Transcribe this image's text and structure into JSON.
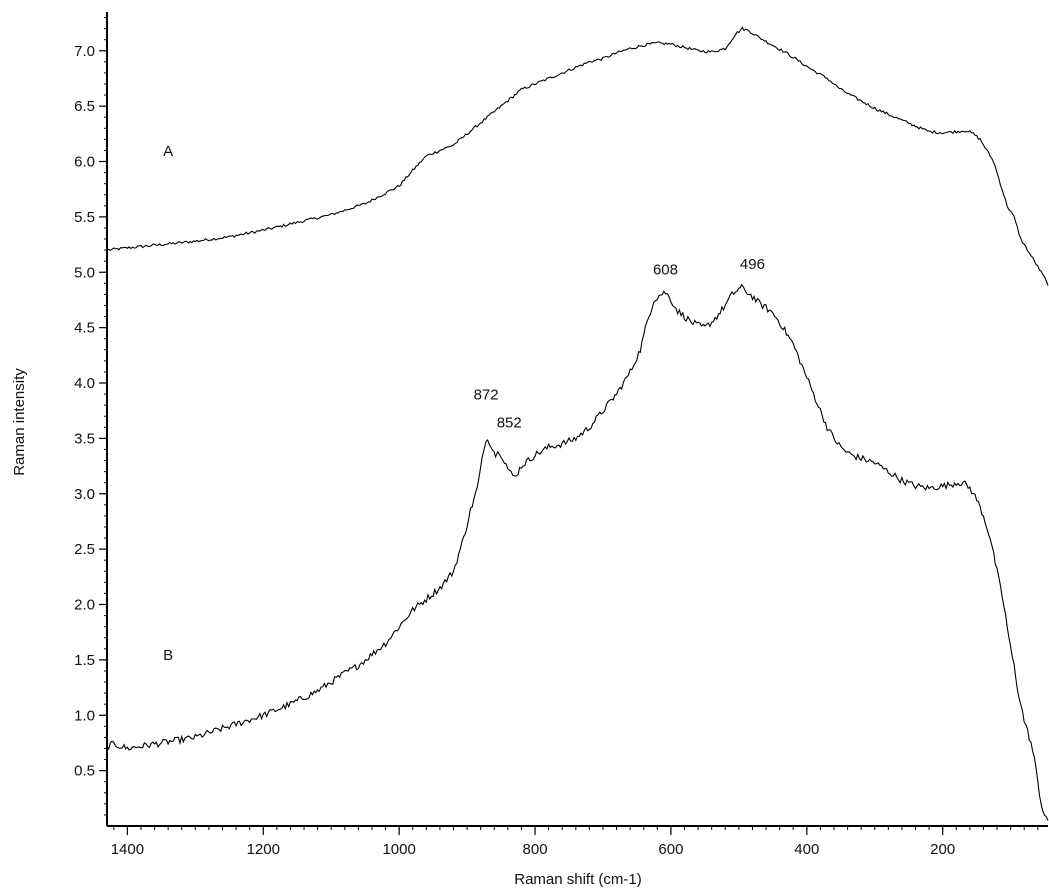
{
  "chart_data": {
    "type": "line",
    "title": "",
    "xlabel": "Raman shift (cm-1)",
    "ylabel": "Raman intensity",
    "xlim": [
      1430,
      45
    ],
    "ylim": [
      0.0,
      7.35
    ],
    "x_reversed": true,
    "grid": false,
    "x_ticks": [
      1400,
      1200,
      1000,
      800,
      600,
      400,
      200
    ],
    "y_ticks": [
      0.5,
      1.0,
      1.5,
      2.0,
      2.5,
      3.0,
      3.5,
      4.0,
      4.5,
      5.0,
      5.5,
      6.0,
      6.5,
      7.0
    ],
    "series": [
      {
        "name": "A",
        "x": [
          1430,
          1400,
          1350,
          1300,
          1250,
          1200,
          1150,
          1100,
          1050,
          1000,
          980,
          960,
          940,
          920,
          900,
          880,
          860,
          840,
          820,
          800,
          780,
          760,
          740,
          720,
          700,
          680,
          660,
          640,
          620,
          600,
          580,
          560,
          540,
          520,
          505,
          495,
          485,
          470,
          450,
          430,
          410,
          390,
          370,
          350,
          330,
          300,
          270,
          240,
          220,
          200,
          180,
          165,
          155,
          145,
          135,
          125,
          115,
          105,
          95,
          85,
          75,
          65,
          55,
          50,
          45
        ],
        "values": [
          5.2,
          5.22,
          5.25,
          5.28,
          5.32,
          5.38,
          5.45,
          5.52,
          5.62,
          5.78,
          5.92,
          6.05,
          6.1,
          6.15,
          6.25,
          6.35,
          6.45,
          6.55,
          6.65,
          6.7,
          6.75,
          6.8,
          6.85,
          6.9,
          6.93,
          6.98,
          7.02,
          7.05,
          7.07,
          7.06,
          7.03,
          7.0,
          6.99,
          7.02,
          7.15,
          7.2,
          7.18,
          7.12,
          7.05,
          6.98,
          6.9,
          6.82,
          6.75,
          6.65,
          6.58,
          6.48,
          6.4,
          6.32,
          6.27,
          6.26,
          6.27,
          6.28,
          6.25,
          6.2,
          6.1,
          6.0,
          5.8,
          5.6,
          5.5,
          5.3,
          5.2,
          5.1,
          5.0,
          4.95,
          4.88
        ]
      },
      {
        "name": "B",
        "x": [
          1430,
          1420,
          1400,
          1380,
          1360,
          1340,
          1320,
          1300,
          1280,
          1260,
          1240,
          1220,
          1200,
          1180,
          1160,
          1140,
          1120,
          1100,
          1080,
          1060,
          1040,
          1020,
          1000,
          980,
          960,
          940,
          920,
          905,
          895,
          885,
          878,
          872,
          865,
          858,
          852,
          845,
          838,
          830,
          820,
          800,
          780,
          760,
          740,
          720,
          700,
          680,
          660,
          645,
          635,
          625,
          615,
          608,
          600,
          590,
          580,
          570,
          560,
          550,
          540,
          530,
          520,
          510,
          500,
          496,
          490,
          480,
          470,
          460,
          450,
          440,
          430,
          420,
          410,
          400,
          390,
          380,
          370,
          360,
          350,
          340,
          330,
          320,
          300,
          280,
          260,
          240,
          220,
          200,
          190,
          180,
          170,
          160,
          150,
          140,
          130,
          125,
          120,
          115,
          110,
          105,
          100,
          95,
          90,
          85,
          80,
          75,
          70,
          65,
          60,
          55,
          50,
          45
        ],
        "values": [
          0.72,
          0.74,
          0.7,
          0.72,
          0.74,
          0.76,
          0.78,
          0.8,
          0.84,
          0.88,
          0.92,
          0.96,
          1.0,
          1.05,
          1.1,
          1.16,
          1.22,
          1.3,
          1.38,
          1.45,
          1.55,
          1.65,
          1.8,
          1.95,
          2.05,
          2.15,
          2.3,
          2.6,
          2.85,
          3.05,
          3.3,
          3.5,
          3.45,
          3.35,
          3.38,
          3.3,
          3.2,
          3.15,
          3.25,
          3.35,
          3.42,
          3.45,
          3.5,
          3.6,
          3.75,
          3.9,
          4.1,
          4.3,
          4.55,
          4.75,
          4.8,
          4.82,
          4.75,
          4.65,
          4.6,
          4.55,
          4.52,
          4.5,
          4.55,
          4.62,
          4.7,
          4.8,
          4.85,
          4.86,
          4.83,
          4.78,
          4.72,
          4.68,
          4.63,
          4.55,
          4.45,
          4.35,
          4.2,
          4.05,
          3.9,
          3.75,
          3.6,
          3.5,
          3.42,
          3.37,
          3.34,
          3.32,
          3.28,
          3.2,
          3.12,
          3.07,
          3.05,
          3.07,
          3.08,
          3.1,
          3.1,
          3.05,
          2.95,
          2.8,
          2.6,
          2.45,
          2.3,
          2.15,
          2.0,
          1.8,
          1.6,
          1.45,
          1.25,
          1.1,
          0.95,
          0.85,
          0.75,
          0.6,
          0.4,
          0.2,
          0.1,
          0.05
        ]
      }
    ],
    "annotations": [
      {
        "text": "A",
        "x": 1340,
        "y": 6.05
      },
      {
        "text": "B",
        "x": 1340,
        "y": 1.5
      },
      {
        "text": "872",
        "x": 872,
        "y": 3.85
      },
      {
        "text": "852",
        "x": 838,
        "y": 3.6
      },
      {
        "text": "608",
        "x": 608,
        "y": 4.98
      },
      {
        "text": "496",
        "x": 480,
        "y": 5.03
      }
    ]
  }
}
